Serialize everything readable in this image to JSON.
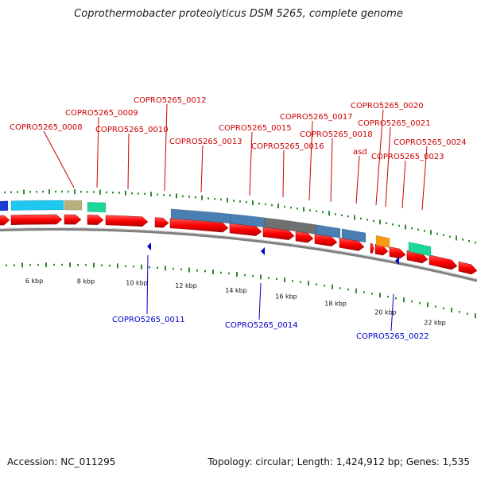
{
  "title": "Coprothermobacter proteolyticus DSM 5265, complete genome",
  "footer": {
    "accession": "Accession: NC_011295",
    "summary": "Topology: circular; Length: 1,424,912 bp; Genes: 1,535"
  },
  "colors": {
    "gene": "#ff0000",
    "backbone": "#808080",
    "ticks": "#2e8b2e",
    "label_top": "#cc0000",
    "label_bottom": "#0000cc",
    "feature_blue": "#4a7fb3",
    "feature_gray": "#707070",
    "feature_cyan": "#1ec8f0",
    "feature_khaki": "#b8b07a",
    "feature_green": "#1cd69a",
    "feature_orange": "#f89a14",
    "feature_navy": "#1a3ad6"
  },
  "scale_labels": [
    "6 kbp",
    "8 kbp",
    "10 kbp",
    "12 kbp",
    "14 kbp",
    "16 kbp",
    "18 kbp",
    "20 kbp",
    "22 kbp"
  ],
  "gene_labels_top": [
    "COPRO5265_0008",
    "COPRO5265_0009",
    "COPRO5265_0010",
    "COPRO5265_0012",
    "COPRO5265_0013",
    "COPRO5265_0015",
    "COPRO5265_0016",
    "COPRO5265_0017",
    "COPRO5265_0018",
    "asd",
    "COPRO5265_0020",
    "COPRO5265_0021",
    "COPRO5265_0023",
    "COPRO5265_0024"
  ],
  "gene_labels_bottom": [
    "COPRO5265_0011",
    "COPRO5265_0014",
    "COPRO5265_0022"
  ]
}
